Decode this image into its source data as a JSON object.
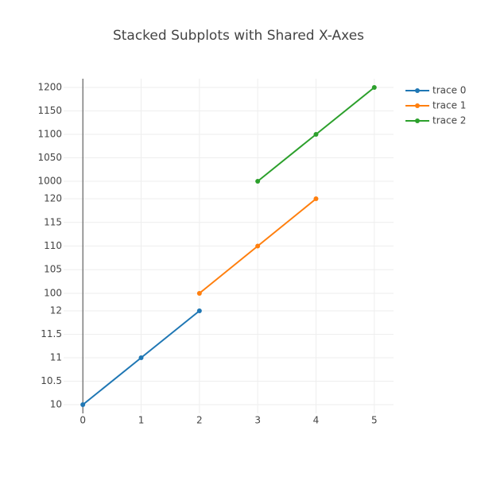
{
  "chart_data": {
    "type": "line",
    "title": "Stacked Subplots with Shared X-Axes",
    "xlim": [
      -0.33,
      5.33
    ],
    "xticks": [
      0,
      1,
      2,
      3,
      4,
      5
    ],
    "grid": true,
    "zeroline": true,
    "legend": "top-right",
    "subplots": [
      {
        "ylim": [
          981.4,
          1218.6
        ],
        "yticks": [
          1000,
          1050,
          1100,
          1150,
          1200
        ],
        "series": [
          {
            "name": "trace 2",
            "color": "#2ca02c",
            "x": [
              3,
              4,
              5
            ],
            "values": [
              1000,
              1100,
              1200
            ]
          }
        ]
      },
      {
        "ylim": [
          98.14,
          121.86
        ],
        "yticks": [
          100,
          105,
          110,
          115,
          120
        ],
        "series": [
          {
            "name": "trace 1",
            "color": "#ff7f0e",
            "x": [
              2,
              3,
              4
            ],
            "values": [
              100,
              110,
              120
            ]
          }
        ]
      },
      {
        "ylim": [
          9.814,
          12.186
        ],
        "yticks": [
          10,
          10.5,
          11,
          11.5,
          12
        ],
        "series": [
          {
            "name": "trace 0",
            "color": "#1f77b4",
            "x": [
              0,
              1,
              2
            ],
            "values": [
              10,
              11,
              12
            ]
          }
        ]
      }
    ]
  }
}
